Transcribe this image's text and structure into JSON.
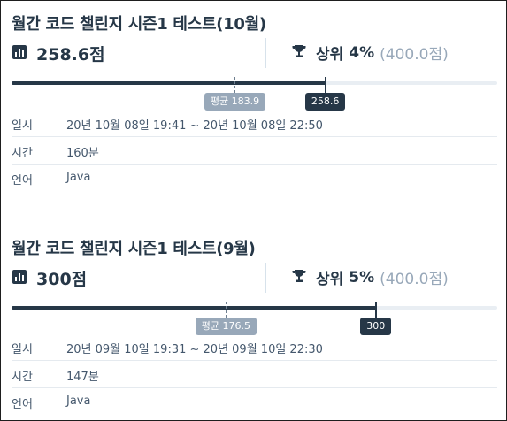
{
  "challenges": [
    {
      "title": "월간 코드 챌린지 시즌1 테스트(10월)",
      "score_label": "258.6점",
      "rank_label": "상위",
      "rank_percent": "4%",
      "rank_total": "(400.0점)",
      "progress": {
        "max": 400.0,
        "average": 183.9,
        "score": 258.6
      },
      "average_tag": "평균 183.9",
      "score_tag": "258.6",
      "rows": [
        {
          "key": "일시",
          "value": "20년 10월 08일 19:41 ~ 20년 10월 08일 22:50"
        },
        {
          "key": "시간",
          "value": "160분"
        },
        {
          "key": "언어",
          "value": "Java"
        }
      ]
    },
    {
      "title": "월간 코드 챌린지 시즌1 테스트(9월)",
      "score_label": "300점",
      "rank_label": "상위",
      "rank_percent": "5%",
      "rank_total": "(400.0점)",
      "progress": {
        "max": 400.0,
        "average": 176.5,
        "score": 300
      },
      "average_tag": "평균 176.5",
      "score_tag": "300",
      "rows": [
        {
          "key": "일시",
          "value": "20년 09월 10일 19:31 ~ 20년 09월 10일 22:30"
        },
        {
          "key": "시간",
          "value": "147분"
        },
        {
          "key": "언어",
          "value": "Java"
        }
      ]
    }
  ],
  "colors": {
    "primary": "#263747",
    "muted": "#98a8b9",
    "track": "#e9eef3",
    "divider": "#d7e2eb"
  }
}
